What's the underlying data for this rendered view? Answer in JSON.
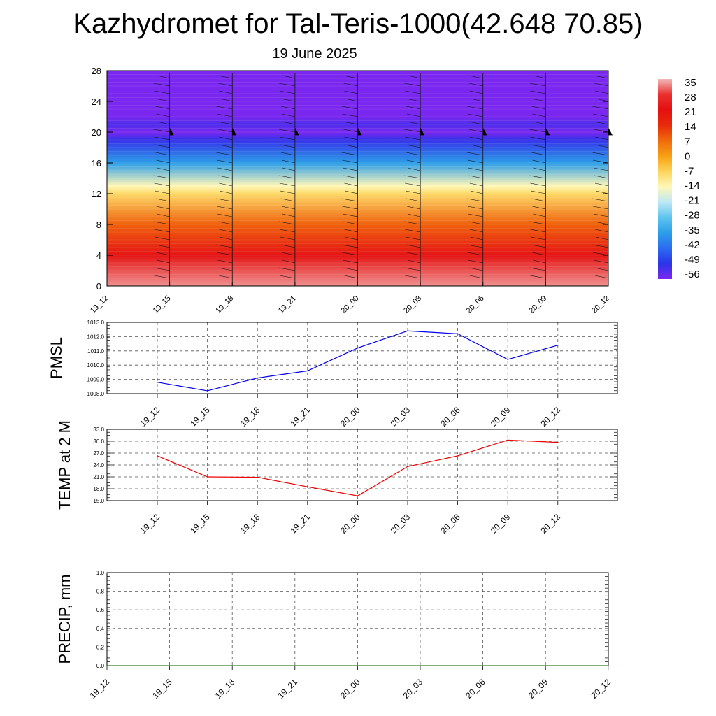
{
  "header": {
    "title": "Kazhydromet for Tal-Teris-1000(42.648 70.85)",
    "date": "19 June 2025"
  },
  "colors": {
    "pmsl_line": "#0000ee",
    "temp_line": "#ee0000",
    "precip_line": "#006400",
    "grid": "#555555"
  },
  "chart_data": [
    {
      "type": "heatmap",
      "title": "",
      "x_ticks": [
        "19_12",
        "19_15",
        "19_18",
        "19_21",
        "20_00",
        "20_03",
        "20_06",
        "20_09",
        "20_12"
      ],
      "y_ticks": [
        "0",
        "4",
        "8",
        "12",
        "16",
        "20",
        "24",
        "28"
      ],
      "ylim": [
        0,
        28
      ],
      "colorbar_labels": [
        "35",
        "28",
        "21",
        "14",
        "7",
        "0",
        "-7",
        "-14",
        "-21",
        "-28",
        "-35",
        "-42",
        "-49",
        "-56"
      ],
      "colorbar_colors": [
        "#f2b8b8",
        "#ea3030",
        "#e41010",
        "#e82a0a",
        "#f06a0c",
        "#f8a012",
        "#fdd45a",
        "#fff7b8",
        "#bfe8f4",
        "#5ec4ef",
        "#2c9ee8",
        "#2b6cf0",
        "#2a34e8",
        "#7a28f0"
      ],
      "vertical_temperature": [
        {
          "height": 0,
          "value": 33
        },
        {
          "height": 4,
          "value": 22
        },
        {
          "height": 8,
          "value": 8
        },
        {
          "height": 12,
          "value": -8
        },
        {
          "height": 13,
          "value": -14
        },
        {
          "height": 16,
          "value": -35
        },
        {
          "height": 19,
          "value": -50
        },
        {
          "height": 20,
          "value": -56
        },
        {
          "height": 21,
          "value": -52
        },
        {
          "height": 22,
          "value": -60
        },
        {
          "height": 28,
          "value": -60
        }
      ]
    },
    {
      "type": "line",
      "ylabel": "PMSL",
      "categories": [
        "19_12",
        "19_15",
        "19_18",
        "19_21",
        "20_00",
        "20_03",
        "20_06",
        "20_09",
        "20_12"
      ],
      "values": [
        1008.8,
        1008.2,
        1009.1,
        1009.6,
        1011.2,
        1012.4,
        1012.2,
        1010.4,
        1011.4
      ],
      "ylim": [
        1008.0,
        1013.0
      ],
      "y_ticks": [
        "1008.0",
        "1009.0",
        "1010.0",
        "1011.0",
        "1012.0",
        "1013.0"
      ]
    },
    {
      "type": "line",
      "ylabel": "TEMP at 2 M",
      "categories": [
        "19_12",
        "19_15",
        "19_18",
        "19_21",
        "20_00",
        "20_03",
        "20_06",
        "20_09",
        "20_12"
      ],
      "values": [
        26.3,
        21.0,
        20.9,
        18.5,
        16.2,
        23.6,
        26.3,
        30.3,
        29.7
      ],
      "ylim": [
        15.0,
        33.0
      ],
      "y_ticks": [
        "15.0",
        "18.0",
        "21.0",
        "24.0",
        "27.0",
        "30.0",
        "33.0"
      ]
    },
    {
      "type": "line",
      "ylabel": "PRECIP, mm",
      "x_ticks": [
        "19_12",
        "19_15",
        "19_18",
        "19_21",
        "20_00",
        "20_03",
        "20_06",
        "20_09",
        "20_12"
      ],
      "values": [
        0,
        0,
        0,
        0,
        0,
        0,
        0,
        0,
        0
      ],
      "ylim": [
        0.0,
        1.0
      ],
      "y_ticks": [
        "0.0",
        "0.2",
        "0.4",
        "0.6",
        "0.8",
        "1.0"
      ]
    }
  ]
}
